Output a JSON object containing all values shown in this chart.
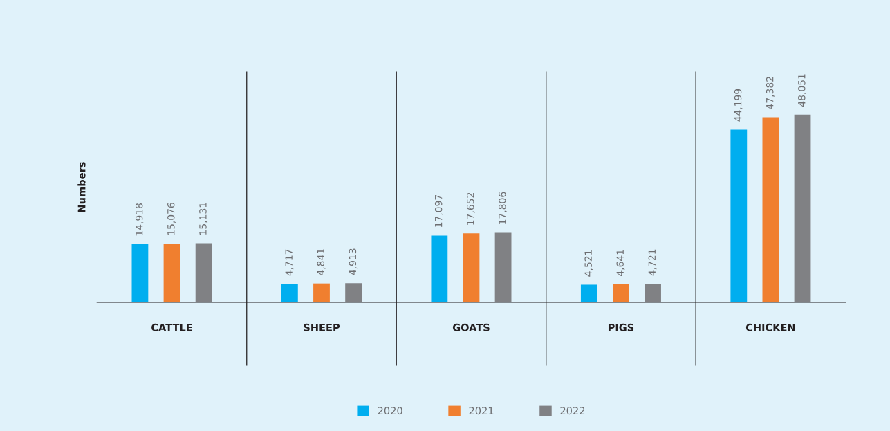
{
  "chart_data": {
    "type": "bar",
    "ylabel": "Numbers",
    "categories": [
      "CATTLE",
      "SHEEP",
      "GOATS",
      "PIGS",
      "CHICKEN"
    ],
    "series": [
      {
        "name": "2020",
        "color": "#00aeef",
        "values": [
          14918,
          4717,
          17097,
          4521,
          44199
        ],
        "value_labels": [
          "14,918",
          "4,717",
          "17,097",
          "4,521",
          "44,199"
        ]
      },
      {
        "name": "2021",
        "color": "#f07f2f",
        "values": [
          15076,
          4841,
          17652,
          4641,
          47382
        ],
        "value_labels": [
          "15,076",
          "4,841",
          "17,652",
          "4,641",
          "47,382"
        ]
      },
      {
        "name": "2022",
        "color": "#808184",
        "values": [
          15131,
          4913,
          17806,
          4721,
          48051
        ],
        "value_labels": [
          "15,131",
          "4,913",
          "17,806",
          "4,721",
          "48,051"
        ]
      }
    ],
    "ylim": [
      0,
      59000
    ],
    "tick_labels": "x",
    "grid": false,
    "legend": "bottom"
  }
}
